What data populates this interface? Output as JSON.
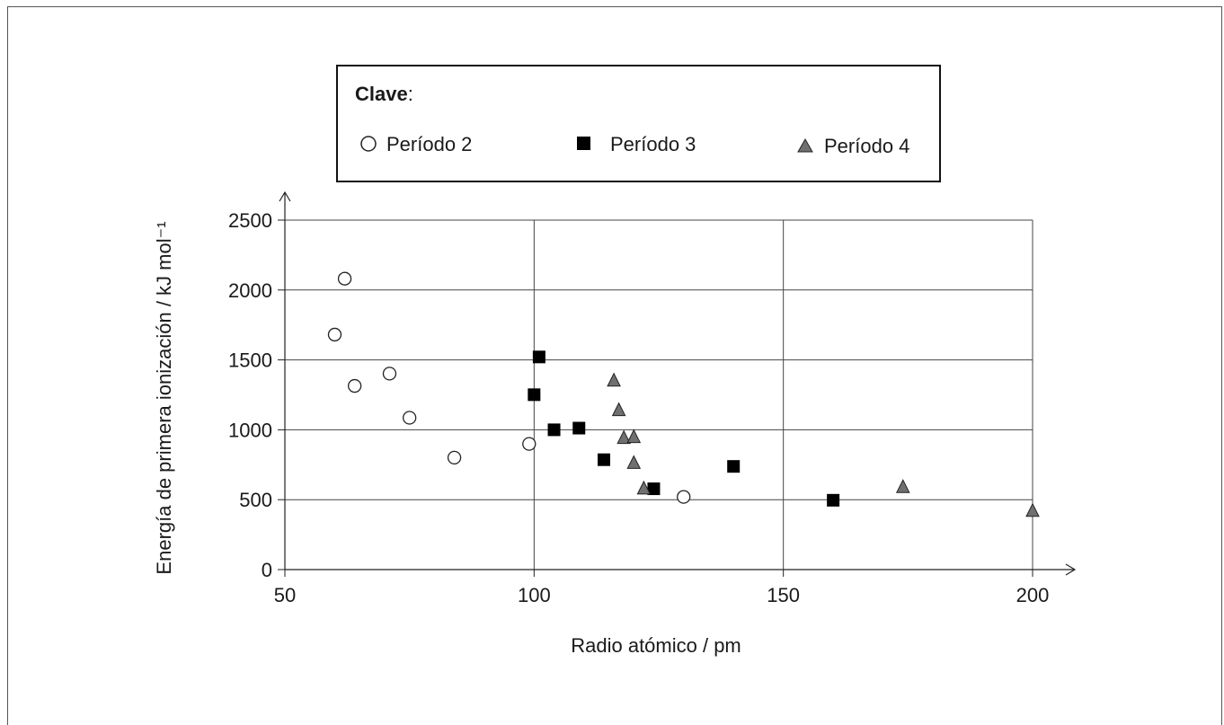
{
  "chart_data": {
    "type": "scatter",
    "xlabel": "Radio atómico / pm",
    "ylabel": "Energía de primera ionización / kJ mol⁻¹",
    "xlim": [
      50,
      200
    ],
    "ylim": [
      0,
      2500
    ],
    "x_ticks": [
      "50",
      "100",
      "150",
      "200"
    ],
    "y_ticks": [
      "0",
      "500",
      "1000",
      "1500",
      "2000",
      "2500"
    ],
    "x_tick_values": [
      50,
      100,
      150,
      200
    ],
    "y_tick_values": [
      0,
      500,
      1000,
      1500,
      2000,
      2500
    ],
    "grid": true,
    "legend": {
      "title": "Clave",
      "title_suffix": ":",
      "placement": "top"
    },
    "series": [
      {
        "name": "Período 2",
        "marker": "circle-open",
        "color": "#ffffff",
        "points": [
          [
            62,
            2081
          ],
          [
            60,
            1681
          ],
          [
            71,
            1402
          ],
          [
            64,
            1314
          ],
          [
            75,
            1086
          ],
          [
            84,
            801
          ],
          [
            99,
            899
          ],
          [
            130,
            520
          ]
        ]
      },
      {
        "name": "Período 3",
        "marker": "square",
        "color": "#000000",
        "points": [
          [
            101,
            1521
          ],
          [
            100,
            1251
          ],
          [
            104,
            1000
          ],
          [
            109,
            1012
          ],
          [
            114,
            786
          ],
          [
            124,
            578
          ],
          [
            140,
            738
          ],
          [
            160,
            496
          ]
        ]
      },
      {
        "name": "Período 4",
        "marker": "triangle",
        "color": "#707070",
        "points": [
          [
            116,
            1351
          ],
          [
            117,
            1140
          ],
          [
            118,
            941
          ],
          [
            120,
            947
          ],
          [
            120,
            762
          ],
          [
            122,
            579
          ],
          [
            174,
            590
          ],
          [
            200,
            419
          ]
        ]
      }
    ]
  }
}
